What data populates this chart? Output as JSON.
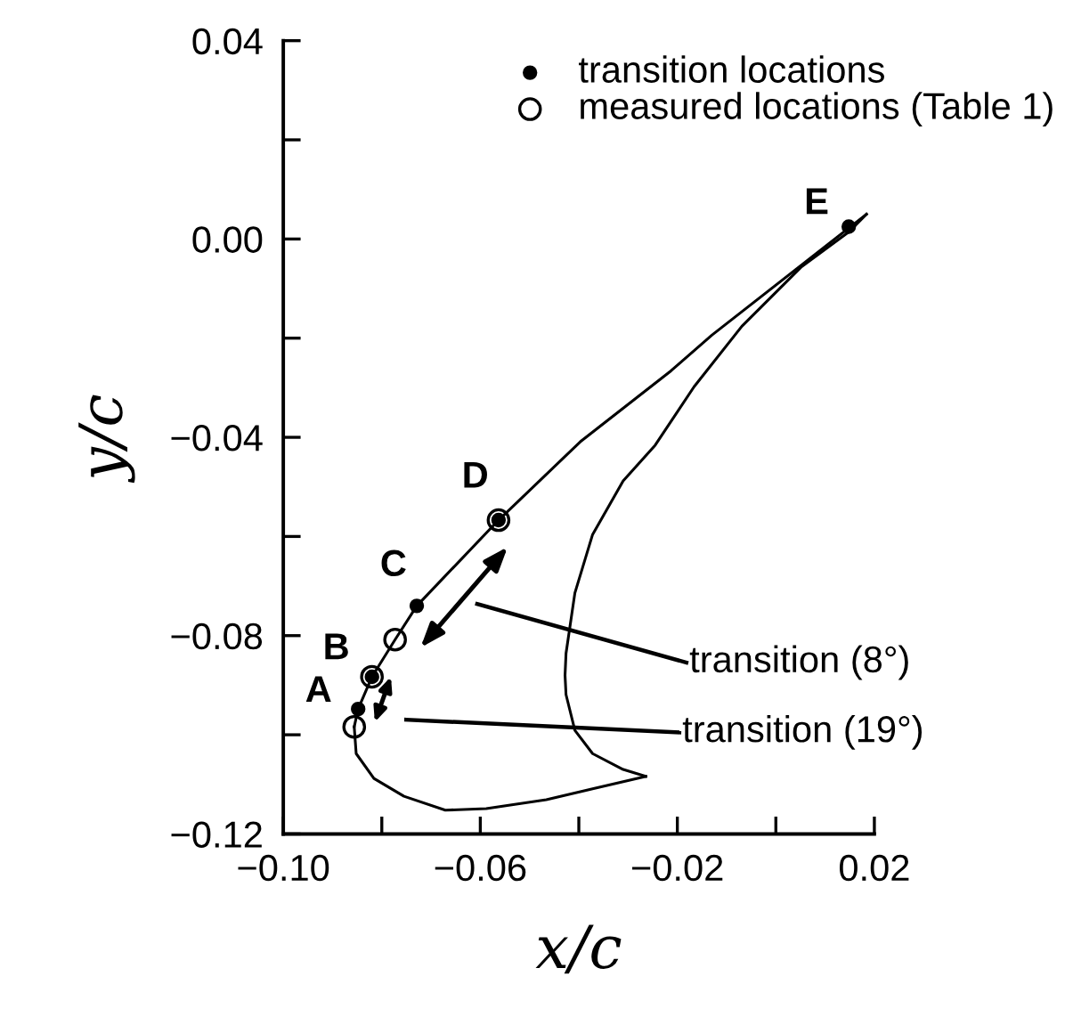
{
  "chart_data": {
    "type": "line",
    "xlabel": "x/c",
    "ylabel": "y/c",
    "xlim": [
      -0.1,
      0.02
    ],
    "ylim": [
      -0.12,
      0.04
    ],
    "xticks": [
      {
        "value": -0.1,
        "label": "−0.10"
      },
      {
        "value": -0.08,
        "label": null
      },
      {
        "value": -0.06,
        "label": "−0.06"
      },
      {
        "value": -0.04,
        "label": null
      },
      {
        "value": -0.02,
        "label": "−0.02"
      },
      {
        "value": 0.0,
        "label": null
      },
      {
        "value": 0.02,
        "label": "0.02"
      }
    ],
    "yticks": [
      {
        "value": -0.12,
        "label": "−0.12"
      },
      {
        "value": -0.1,
        "label": null
      },
      {
        "value": -0.08,
        "label": "−0.08"
      },
      {
        "value": -0.06,
        "label": null
      },
      {
        "value": -0.04,
        "label": "−0.04"
      },
      {
        "value": -0.02,
        "label": null
      },
      {
        "value": 0.0,
        "label": "0.00"
      },
      {
        "value": 0.02,
        "label": null
      },
      {
        "value": 0.04,
        "label": "0.04"
      }
    ],
    "grid": false,
    "legend": "top right",
    "series": [
      {
        "color": "#000000",
        "marker": "none",
        "line_style": "solid",
        "x": [
          0.0184,
          -0.013,
          -0.0213,
          -0.0397,
          -0.0563,
          -0.0729,
          -0.0773,
          -0.082,
          -0.0848,
          -0.0856
        ],
        "values": [
          0.005,
          -0.0194,
          -0.0266,
          -0.0409,
          -0.0567,
          -0.074,
          -0.0808,
          -0.0883,
          -0.0948,
          -0.0984
        ]
      },
      {
        "color": "#000000",
        "marker": "none",
        "line_style": "solid",
        "x": [
          -0.0856,
          -0.0852,
          -0.0816,
          -0.0755,
          -0.0671,
          -0.0588,
          -0.0466,
          -0.0372,
          -0.0264
        ],
        "values": [
          -0.0984,
          -0.1038,
          -0.1088,
          -0.1124,
          -0.1152,
          -0.1149,
          -0.1131,
          -0.1109,
          -0.1084
        ]
      },
      {
        "color": "#000000",
        "marker": "none",
        "line_style": "solid",
        "x": [
          -0.0264,
          -0.031,
          -0.0372,
          -0.0408,
          -0.0426,
          -0.0428,
          -0.0426,
          -0.0408,
          -0.0372,
          -0.031,
          -0.0245,
          -0.0166,
          -0.0069,
          0.0051,
          0.0148,
          0.0184
        ],
        "values": [
          -0.1084,
          -0.107,
          -0.1038,
          -0.0991,
          -0.0919,
          -0.088,
          -0.0836,
          -0.0714,
          -0.0596,
          -0.0488,
          -0.0416,
          -0.0298,
          -0.0176,
          -0.0057,
          0.0014,
          0.005
        ]
      },
      {
        "type": "scatter",
        "name": "transition locations",
        "color": "#000000",
        "marker": "circle",
        "x": [
          0.0148,
          -0.0563,
          -0.0729,
          -0.082,
          -0.0848
        ],
        "values": [
          0.0025,
          -0.0567,
          -0.074,
          -0.0883,
          -0.0948
        ]
      },
      {
        "type": "scatter",
        "name": "measured locations (Table 1)",
        "color": "#000000",
        "marker": "circle",
        "x": [
          -0.0563,
          -0.0773,
          -0.082,
          -0.0856
        ],
        "values": [
          -0.0567,
          -0.0808,
          -0.0883,
          -0.0984
        ]
      }
    ],
    "annotations": [
      {
        "text": "E",
        "x": 0.0148,
        "y": 0.0025
      },
      {
        "text": "D",
        "x": -0.0563,
        "y": -0.0567
      },
      {
        "text": "C",
        "x": -0.0729,
        "y": -0.074
      },
      {
        "text": "B",
        "x": -0.082,
        "y": -0.0883
      },
      {
        "text": "A",
        "x": -0.0856,
        "y": -0.0984
      },
      "transition (8°)",
      "transition (19°)"
    ]
  }
}
